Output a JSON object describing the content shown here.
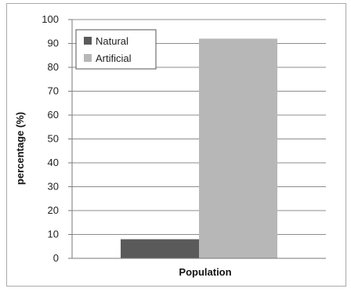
{
  "chart_data": {
    "type": "bar",
    "categories": [
      "Population"
    ],
    "series": [
      {
        "name": "Natural",
        "values": [
          8
        ]
      },
      {
        "name": "Artificial",
        "values": [
          92
        ]
      }
    ],
    "title": "",
    "xlabel": "Population",
    "ylabel": "percentage (%)",
    "ylim": [
      0,
      100
    ],
    "yticks": [
      "0",
      "10",
      "20",
      "30",
      "40",
      "50",
      "60",
      "70",
      "80",
      "90",
      "100"
    ],
    "grid": true,
    "legend_position": "top-left",
    "colors": {
      "Natural": "#5a5a5a",
      "Artificial": "#b7b7b7",
      "grid": "#8c8c8c",
      "axis": "#7a7a7a"
    }
  }
}
